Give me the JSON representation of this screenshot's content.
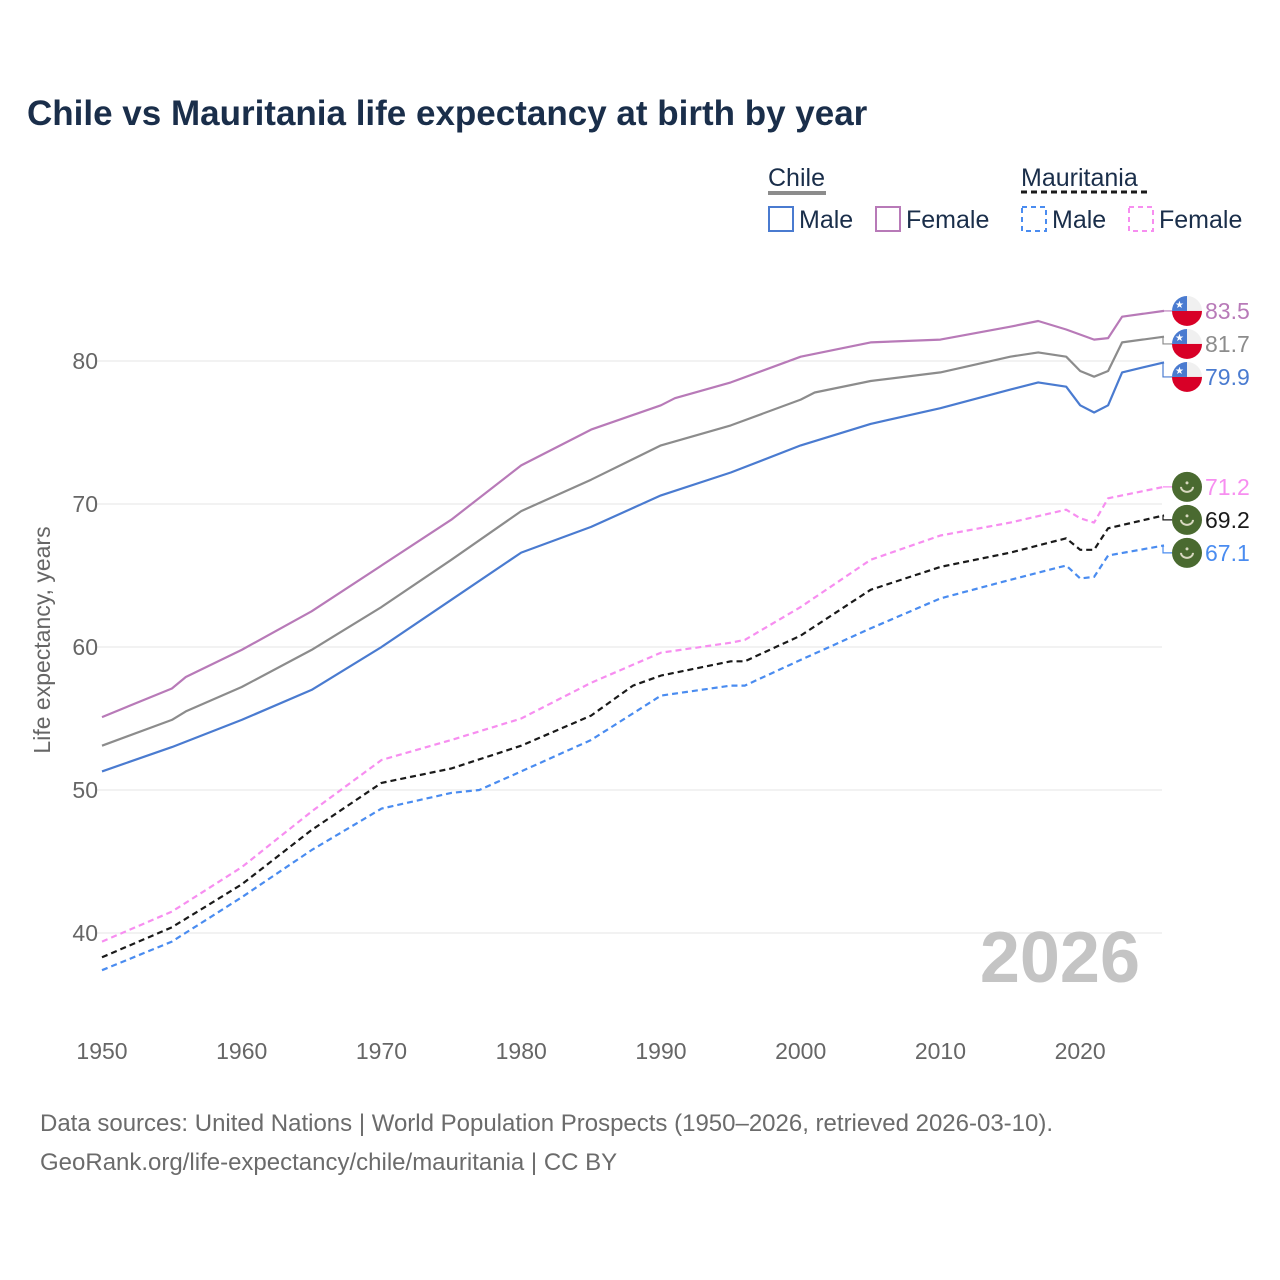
{
  "chart_data": {
    "type": "line",
    "title": "Chile vs Mauritania life expectancy at birth by year",
    "xlabel": "",
    "ylabel": "Life expectancy, years",
    "xlim": [
      1950,
      2026
    ],
    "ylim": [
      35,
      87
    ],
    "xticks": [
      1950,
      1960,
      1970,
      1980,
      1990,
      2000,
      2010,
      2020
    ],
    "yticks": [
      40,
      50,
      60,
      70,
      80
    ],
    "grid": true,
    "year_watermark": "2026",
    "legend": {
      "placement": "top-right",
      "groups": [
        {
          "country": "Chile",
          "entries": [
            "Male",
            "Female"
          ]
        },
        {
          "country": "Mauritania",
          "entries": [
            "Male",
            "Female"
          ]
        }
      ]
    },
    "series": [
      {
        "name": "Chile Female",
        "country": "Chile",
        "color": "#b87ab8",
        "dashed": false,
        "end_label": "83.5",
        "points": [
          [
            1950,
            55.1
          ],
          [
            1955,
            57.1
          ],
          [
            1956,
            57.9
          ],
          [
            1960,
            59.8
          ],
          [
            1965,
            62.5
          ],
          [
            1970,
            65.7
          ],
          [
            1975,
            68.9
          ],
          [
            1980,
            72.7
          ],
          [
            1985,
            75.2
          ],
          [
            1990,
            76.9
          ],
          [
            1991,
            77.4
          ],
          [
            1995,
            78.5
          ],
          [
            2000,
            80.3
          ],
          [
            2005,
            81.3
          ],
          [
            2010,
            81.5
          ],
          [
            2015,
            82.4
          ],
          [
            2017,
            82.8
          ],
          [
            2019,
            82.2
          ],
          [
            2021,
            81.5
          ],
          [
            2022,
            81.6
          ],
          [
            2023,
            83.1
          ],
          [
            2026,
            83.5
          ]
        ]
      },
      {
        "name": "Chile Total",
        "country": "Chile",
        "color": "#8c8c8c",
        "dashed": false,
        "end_label": "81.7",
        "points": [
          [
            1950,
            53.1
          ],
          [
            1955,
            54.9
          ],
          [
            1956,
            55.5
          ],
          [
            1960,
            57.2
          ],
          [
            1965,
            59.8
          ],
          [
            1970,
            62.8
          ],
          [
            1975,
            66.1
          ],
          [
            1980,
            69.5
          ],
          [
            1985,
            71.7
          ],
          [
            1990,
            74.1
          ],
          [
            1995,
            75.5
          ],
          [
            2000,
            77.3
          ],
          [
            2001,
            77.8
          ],
          [
            2005,
            78.6
          ],
          [
            2010,
            79.2
          ],
          [
            2015,
            80.3
          ],
          [
            2017,
            80.6
          ],
          [
            2019,
            80.3
          ],
          [
            2020,
            79.3
          ],
          [
            2021,
            78.9
          ],
          [
            2022,
            79.3
          ],
          [
            2023,
            81.3
          ],
          [
            2026,
            81.7
          ]
        ]
      },
      {
        "name": "Chile Male",
        "country": "Chile",
        "color": "#4a7bd0",
        "dashed": false,
        "end_label": "79.9",
        "points": [
          [
            1950,
            51.3
          ],
          [
            1955,
            53.0
          ],
          [
            1960,
            54.9
          ],
          [
            1965,
            57.0
          ],
          [
            1970,
            60.0
          ],
          [
            1975,
            63.3
          ],
          [
            1980,
            66.6
          ],
          [
            1985,
            68.4
          ],
          [
            1990,
            70.6
          ],
          [
            1995,
            72.2
          ],
          [
            2000,
            74.1
          ],
          [
            2005,
            75.6
          ],
          [
            2010,
            76.7
          ],
          [
            2015,
            78.0
          ],
          [
            2017,
            78.5
          ],
          [
            2019,
            78.2
          ],
          [
            2020,
            76.9
          ],
          [
            2021,
            76.4
          ],
          [
            2022,
            76.9
          ],
          [
            2023,
            79.2
          ],
          [
            2026,
            79.9
          ]
        ]
      },
      {
        "name": "Mauritania Female",
        "country": "Mauritania",
        "color": "#f78ef0",
        "dashed": true,
        "end_label": "71.2",
        "points": [
          [
            1950,
            39.4
          ],
          [
            1955,
            41.5
          ],
          [
            1960,
            44.6
          ],
          [
            1965,
            48.5
          ],
          [
            1970,
            52.1
          ],
          [
            1975,
            53.5
          ],
          [
            1980,
            55.0
          ],
          [
            1985,
            57.5
          ],
          [
            1990,
            59.6
          ],
          [
            1995,
            60.3
          ],
          [
            1996,
            60.5
          ],
          [
            2000,
            62.8
          ],
          [
            2005,
            66.1
          ],
          [
            2010,
            67.8
          ],
          [
            2015,
            68.7
          ],
          [
            2019,
            69.6
          ],
          [
            2020,
            69.0
          ],
          [
            2021,
            68.7
          ],
          [
            2022,
            70.4
          ],
          [
            2026,
            71.2
          ]
        ]
      },
      {
        "name": "Mauritania Total",
        "country": "Mauritania",
        "color": "#1a1a1a",
        "dashed": true,
        "end_label": "69.2",
        "points": [
          [
            1950,
            38.3
          ],
          [
            1955,
            40.4
          ],
          [
            1960,
            43.4
          ],
          [
            1965,
            47.2
          ],
          [
            1970,
            50.5
          ],
          [
            1975,
            51.5
          ],
          [
            1980,
            53.1
          ],
          [
            1985,
            55.2
          ],
          [
            1988,
            57.3
          ],
          [
            1990,
            58.0
          ],
          [
            1995,
            59.0
          ],
          [
            1996,
            59.0
          ],
          [
            2000,
            60.8
          ],
          [
            2005,
            64.0
          ],
          [
            2010,
            65.6
          ],
          [
            2015,
            66.6
          ],
          [
            2019,
            67.6
          ],
          [
            2020,
            66.8
          ],
          [
            2021,
            66.8
          ],
          [
            2022,
            68.3
          ],
          [
            2026,
            69.2
          ]
        ]
      },
      {
        "name": "Mauritania Male",
        "country": "Mauritania",
        "color": "#4a8cf0",
        "dashed": true,
        "end_label": "67.1",
        "points": [
          [
            1950,
            37.4
          ],
          [
            1955,
            39.4
          ],
          [
            1960,
            42.5
          ],
          [
            1965,
            45.8
          ],
          [
            1970,
            48.7
          ],
          [
            1975,
            49.8
          ],
          [
            1977,
            50.0
          ],
          [
            1980,
            51.3
          ],
          [
            1985,
            53.5
          ],
          [
            1990,
            56.6
          ],
          [
            1995,
            57.3
          ],
          [
            1996,
            57.3
          ],
          [
            2000,
            59.1
          ],
          [
            2005,
            61.3
          ],
          [
            2010,
            63.4
          ],
          [
            2015,
            64.7
          ],
          [
            2019,
            65.7
          ],
          [
            2020,
            64.8
          ],
          [
            2021,
            64.9
          ],
          [
            2022,
            66.4
          ],
          [
            2026,
            67.1
          ]
        ]
      }
    ]
  },
  "footer": {
    "line1": "Data sources: United Nations | World Population Prospects (1950–2026, retrieved 2026-03-10).",
    "line2": "GeoRank.org/life-expectancy/chile/mauritania | CC BY"
  }
}
